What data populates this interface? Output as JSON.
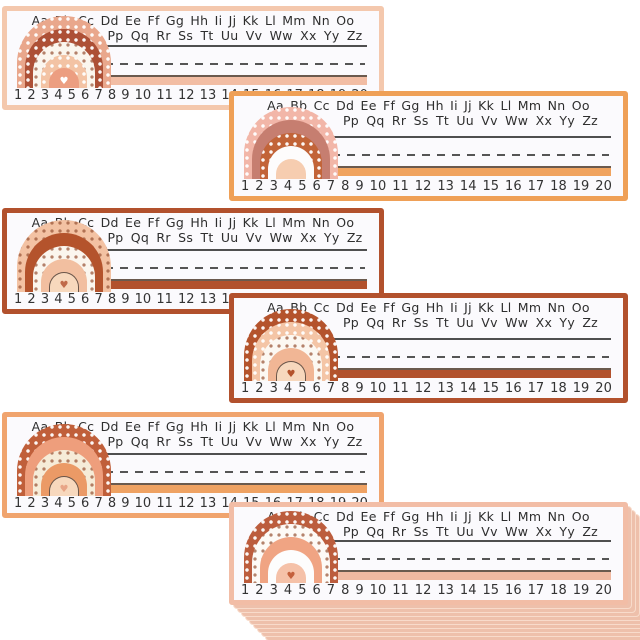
{
  "product": {
    "description": "Set of boho rainbow classroom desk name plates, staggered product photo with a fanned stack of extra sheets at bottom right"
  },
  "alphabet": {
    "row1": "Aa Bb Cc Dd Ee Ff Gg Hh Ii Jj Kk Ll Mm Nn Oo",
    "row2": "Pp Qq Rr Ss Tt Uu Vv Ww Xx Yy Zz"
  },
  "numbers": [
    "1",
    "2",
    "3",
    "4",
    "5",
    "6",
    "7",
    "8",
    "9",
    "10",
    "11",
    "12",
    "13",
    "14",
    "15",
    "16",
    "17",
    "18",
    "19",
    "20"
  ],
  "line_colors": {
    "solid_line": "#4f4f4f",
    "dashed_line": "#555555",
    "baseline_top": "#6b5a4e",
    "text": "#2e2e2e"
  },
  "plates": [
    {
      "name": "plate-1-top-left",
      "border_color": "#f4c8ad",
      "bar_color": "#f2bda4",
      "rainbow": {
        "bands": [
          {
            "color": "#e9a78c",
            "pattern": "dots"
          },
          {
            "color": "#ad5036",
            "pattern": "dots"
          },
          {
            "color": "#fbf6ee",
            "pattern": "dots-dark"
          },
          {
            "color": "#f3c3a4",
            "pattern": "dots"
          },
          {
            "color": "#ec9e81",
            "pattern": "plain"
          }
        ],
        "heart_color": "#ffffff",
        "outlined": false
      }
    },
    {
      "name": "plate-2-top-right",
      "border_color": "#efa057",
      "bar_color": "#f0a35f",
      "rainbow": {
        "bands": [
          {
            "color": "#f2b6a8",
            "pattern": "dots"
          },
          {
            "color": "#c67e70",
            "pattern": "plain"
          },
          {
            "color": "#c26438",
            "pattern": "dots"
          },
          {
            "color": "#fdfcfc",
            "pattern": "plain"
          },
          {
            "color": "#f6cdb0",
            "pattern": "plain"
          }
        ],
        "heart_color": null,
        "outlined": false
      }
    },
    {
      "name": "plate-3-middle-left",
      "border_color": "#b2512d",
      "bar_color": "#b2512d",
      "rainbow": {
        "bands": [
          {
            "color": "#f3c2a3",
            "pattern": "dots-dark"
          },
          {
            "color": "#b4532c",
            "pattern": "plain"
          },
          {
            "color": "#fbf6ee",
            "pattern": "dots-dark"
          },
          {
            "color": "#f2bfa0",
            "pattern": "plain"
          },
          {
            "color": "#f7d8bd",
            "pattern": "plain"
          }
        ],
        "heart_color": "#c06a4a",
        "outlined": true
      }
    },
    {
      "name": "plate-4-middle-right",
      "border_color": "#b2512d",
      "bar_color": "#b2512d",
      "rainbow": {
        "bands": [
          {
            "color": "#b4532c",
            "pattern": "dots"
          },
          {
            "color": "#f4c5a6",
            "pattern": "dots"
          },
          {
            "color": "#fcf8f2",
            "pattern": "dots-dark"
          },
          {
            "color": "#f1b695",
            "pattern": "plain"
          },
          {
            "color": "#f7d8bd",
            "pattern": "plain"
          }
        ],
        "heart_color": "#b4532c",
        "outlined": true
      }
    },
    {
      "name": "plate-5-bottom-left",
      "border_color": "#f0a46e",
      "bar_color": "#efa263",
      "rainbow": {
        "bands": [
          {
            "color": "#c05f3a",
            "pattern": "dots"
          },
          {
            "color": "#ee9e7c",
            "pattern": "plain"
          },
          {
            "color": "#f6ecd8",
            "pattern": "dots-dark"
          },
          {
            "color": "#eb9a66",
            "pattern": "plain"
          },
          {
            "color": "#f7d8bd",
            "pattern": "plain"
          }
        ],
        "heart_color": "#e8a486",
        "outlined": true
      }
    },
    {
      "name": "plate-6-bottom-right",
      "border_color": "#f2bda6",
      "bar_color": "#f1b9a1",
      "rainbow": {
        "bands": [
          {
            "color": "#bc5d3d",
            "pattern": "dots"
          },
          {
            "color": "#fdfaf6",
            "pattern": "dots-dark"
          },
          {
            "color": "#f0a483",
            "pattern": "plain"
          },
          {
            "color": "#fdfdfd",
            "pattern": "plain"
          },
          {
            "color": "#f5c1a8",
            "pattern": "plain"
          }
        ],
        "heart_color": "#c4603c",
        "outlined": false
      }
    }
  ],
  "stack": {
    "sheet_color": "#eec0ab",
    "edge_color": "#f8dbcb",
    "count": 10
  }
}
